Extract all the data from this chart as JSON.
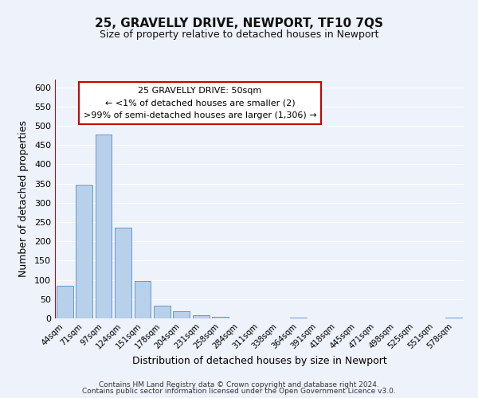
{
  "title": "25, GRAVELLY DRIVE, NEWPORT, TF10 7QS",
  "subtitle": "Size of property relative to detached houses in Newport",
  "xlabel": "Distribution of detached houses by size in Newport",
  "ylabel": "Number of detached properties",
  "bar_color": "#b8d0ea",
  "bar_edge_color": "#6699cc",
  "annotation_box_color": "#ffffff",
  "annotation_border_color": "#cc0000",
  "annotation_line1": "25 GRAVELLY DRIVE: 50sqm",
  "annotation_line2": "← <1% of detached houses are smaller (2)",
  "annotation_line3": ">99% of semi-detached houses are larger (1,306) →",
  "categories": [
    "44sqm",
    "71sqm",
    "97sqm",
    "124sqm",
    "151sqm",
    "178sqm",
    "204sqm",
    "231sqm",
    "258sqm",
    "284sqm",
    "311sqm",
    "338sqm",
    "364sqm",
    "391sqm",
    "418sqm",
    "445sqm",
    "471sqm",
    "498sqm",
    "525sqm",
    "551sqm",
    "578sqm"
  ],
  "values": [
    84,
    348,
    477,
    236,
    97,
    34,
    18,
    8,
    4,
    0,
    0,
    0,
    2,
    0,
    0,
    0,
    0,
    0,
    0,
    0,
    2
  ],
  "ylim": [
    0,
    620
  ],
  "yticks": [
    0,
    50,
    100,
    150,
    200,
    250,
    300,
    350,
    400,
    450,
    500,
    550,
    600
  ],
  "red_line_color": "#cc0000",
  "footer_line1": "Contains HM Land Registry data © Crown copyright and database right 2024.",
  "footer_line2": "Contains public sector information licensed under the Open Government Licence v3.0.",
  "background_color": "#eef2fb",
  "plot_bg_color": "#eef2fb",
  "grid_color": "#ffffff"
}
